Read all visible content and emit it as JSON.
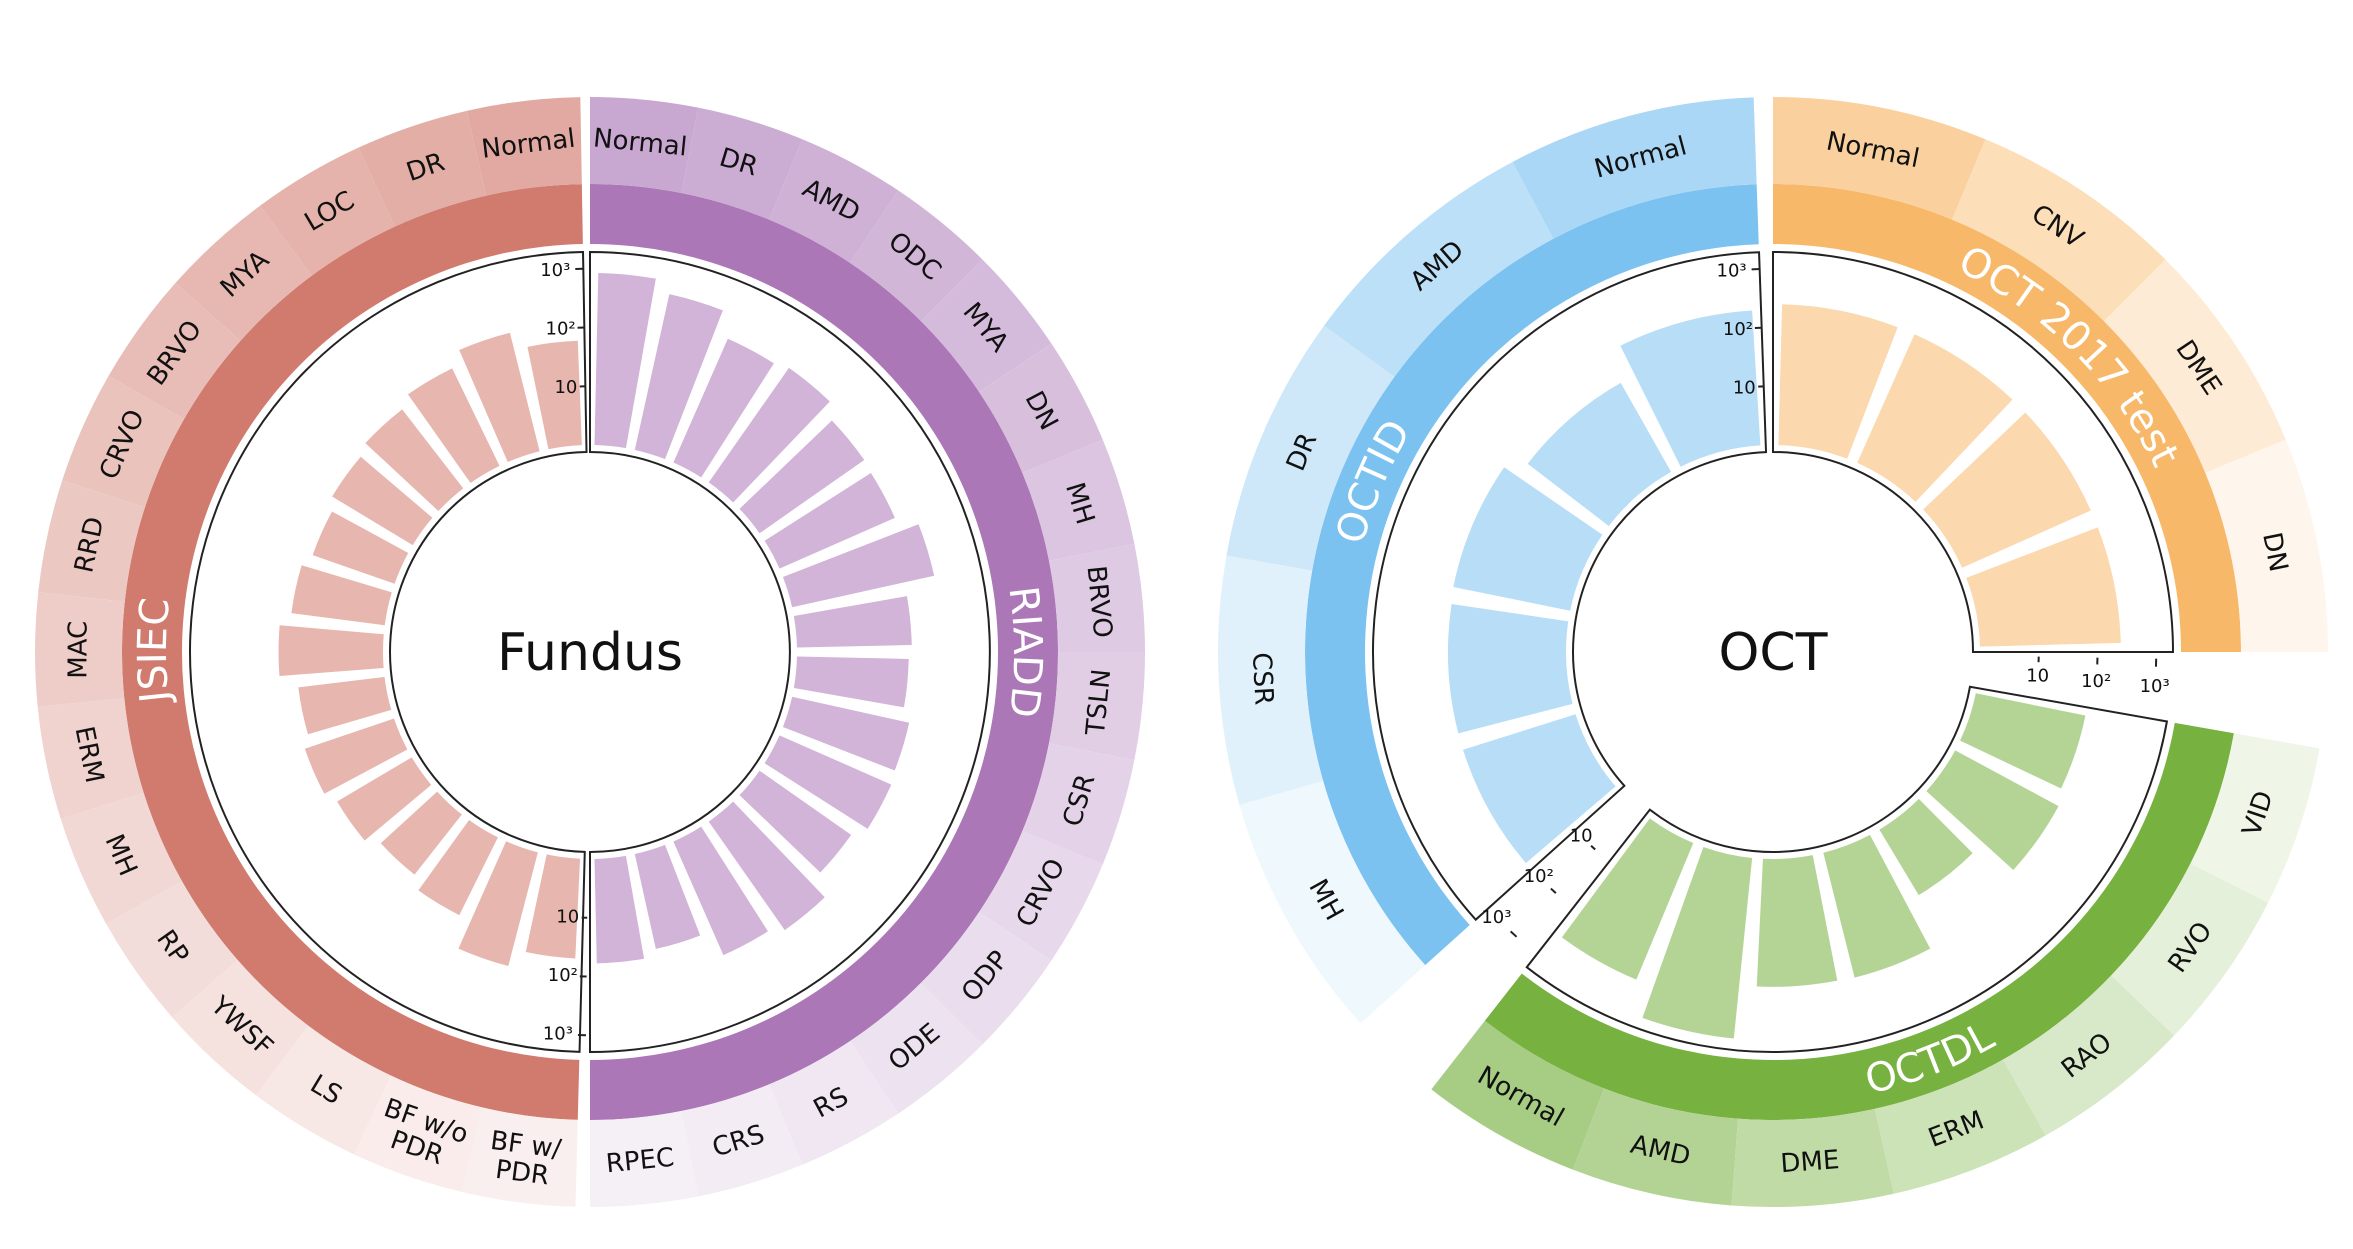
{
  "chart_data": [
    {
      "type": "circular-bar",
      "title": "Fundus",
      "radial_scale": "log",
      "radial_ticks": [
        "10",
        "10²",
        "10³"
      ],
      "groups": [
        {
          "name": "RIADD",
          "color": "#ab77b7",
          "categories": [
            "Normal",
            "DR",
            "AMD",
            "ODC",
            "MYA",
            "DN",
            "MH",
            "BRVO",
            "TSLN",
            "CSR",
            "CRVO",
            "ODP",
            "ODE",
            "RS",
            "CRS",
            "RPEC"
          ],
          "values": [
            850,
            520,
            200,
            240,
            150,
            140,
            300,
            90,
            80,
            110,
            120,
            80,
            180,
            130,
            45,
            60
          ]
        },
        {
          "name": "JSIEC",
          "color": "#d17a6e",
          "categories": [
            "Normal",
            "DR",
            "LOC",
            "MYA",
            "BRVO",
            "CRVO",
            "RRD",
            "MAC",
            "ERM",
            "MH",
            "RP",
            "YWSF",
            "LS",
            "BF w/o PDR",
            "BF w/ PDR"
          ],
          "values": [
            60,
            120,
            70,
            50,
            40,
            30,
            40,
            60,
            30,
            40,
            30,
            20,
            30,
            100,
            50
          ]
        }
      ]
    },
    {
      "type": "circular-bar",
      "title": "OCT",
      "radial_scale": "log",
      "radial_ticks": [
        "10",
        "10²",
        "10³"
      ],
      "groups": [
        {
          "name": "OCT 2017 test",
          "color": "#f8b869",
          "categories": [
            "Normal",
            "CNV",
            "DME",
            "DN"
          ],
          "values": [
            250,
            250,
            250,
            250
          ]
        },
        {
          "name": "OCTDL",
          "color": "#77b140",
          "categories": [
            "Normal",
            "AMD",
            "DME",
            "ERM",
            "RAO",
            "RVO",
            "VID"
          ],
          "values": [
            330,
            1230,
            150,
            155,
            20,
            100,
            80
          ]
        },
        {
          "name": "OCTID",
          "color": "#7cc2f1",
          "categories": [
            "Normal",
            "AMD",
            "DR",
            "CSR",
            "MH"
          ],
          "values": [
            200,
            55,
            107,
            102,
            102
          ]
        }
      ]
    }
  ],
  "colors": {
    "riadd": "#ab77b7",
    "jsiec": "#d17a6e",
    "oct2017": "#f8b869",
    "octdl": "#77b140",
    "octid": "#7cc2f1"
  }
}
